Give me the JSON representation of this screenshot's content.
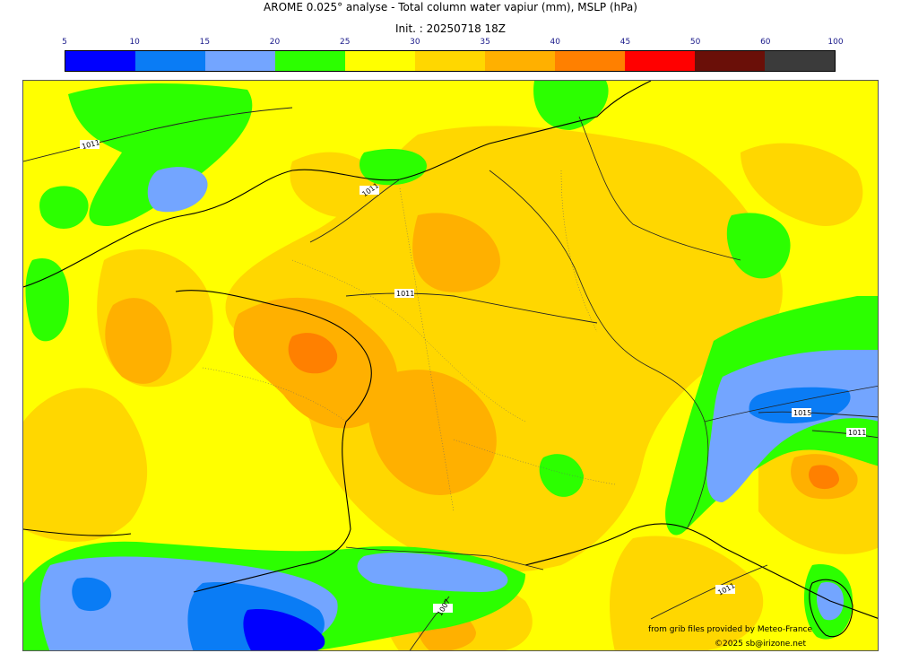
{
  "header": {
    "title": "AROME 0.025° analyse - Total column water vapiur (mm), MSLP (hPa)",
    "init": "Init. : 20250718 18Z"
  },
  "colorbar": {
    "ticks": [
      "5",
      "10",
      "15",
      "20",
      "25",
      "30",
      "35",
      "40",
      "45",
      "50",
      "60",
      "100"
    ],
    "colors": [
      "#0000ff",
      "#0a7cf5",
      "#73a5ff",
      "#2cff00",
      "#ffff00",
      "#ffd700",
      "#ffb000",
      "#ff8000",
      "#ff0000",
      "#6a0f08",
      "#3b3b3b"
    ]
  },
  "map": {
    "isobar_labels": [
      "1011",
      "1011",
      "1011",
      "1015",
      "1011",
      "1011",
      "1007"
    ]
  },
  "credits": {
    "source": "from grib files provided by Meteo-France",
    "copyright": "©2025 sb@irizone.net"
  }
}
